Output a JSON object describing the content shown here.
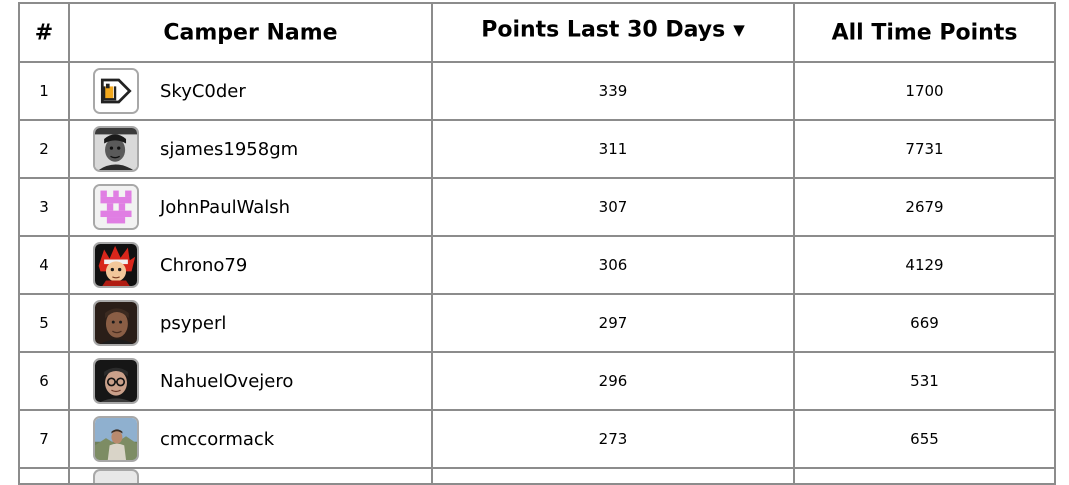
{
  "table": {
    "headers": {
      "rank": "#",
      "camper_name": "Camper Name",
      "recent_points": "Points Last 30 Days",
      "all_time_points": "All Time Points"
    },
    "sort_indicator": "▼",
    "rows": [
      {
        "rank": "1",
        "username": "SkyC0der",
        "recent": "339",
        "alltime": "1700",
        "avatar": "cube-logo-avatar-icon"
      },
      {
        "rank": "2",
        "username": "sjames1958gm",
        "recent": "311",
        "alltime": "7731",
        "avatar": "bw-portrait-avatar-icon"
      },
      {
        "rank": "3",
        "username": "JohnPaulWalsh",
        "recent": "307",
        "alltime": "2679",
        "avatar": "pink-pixel-avatar-icon"
      },
      {
        "rank": "4",
        "username": "Chrono79",
        "recent": "306",
        "alltime": "4129",
        "avatar": "red-hair-anime-avatar-icon"
      },
      {
        "rank": "5",
        "username": "psyperl",
        "recent": "297",
        "alltime": "669",
        "avatar": "dark-portrait-avatar-icon"
      },
      {
        "rank": "6",
        "username": "NahuelOvejero",
        "recent": "296",
        "alltime": "531",
        "avatar": "glasses-portrait-avatar-icon"
      },
      {
        "rank": "7",
        "username": "cmccormack",
        "recent": "273",
        "alltime": "655",
        "avatar": "outdoor-portrait-avatar-icon"
      }
    ]
  }
}
